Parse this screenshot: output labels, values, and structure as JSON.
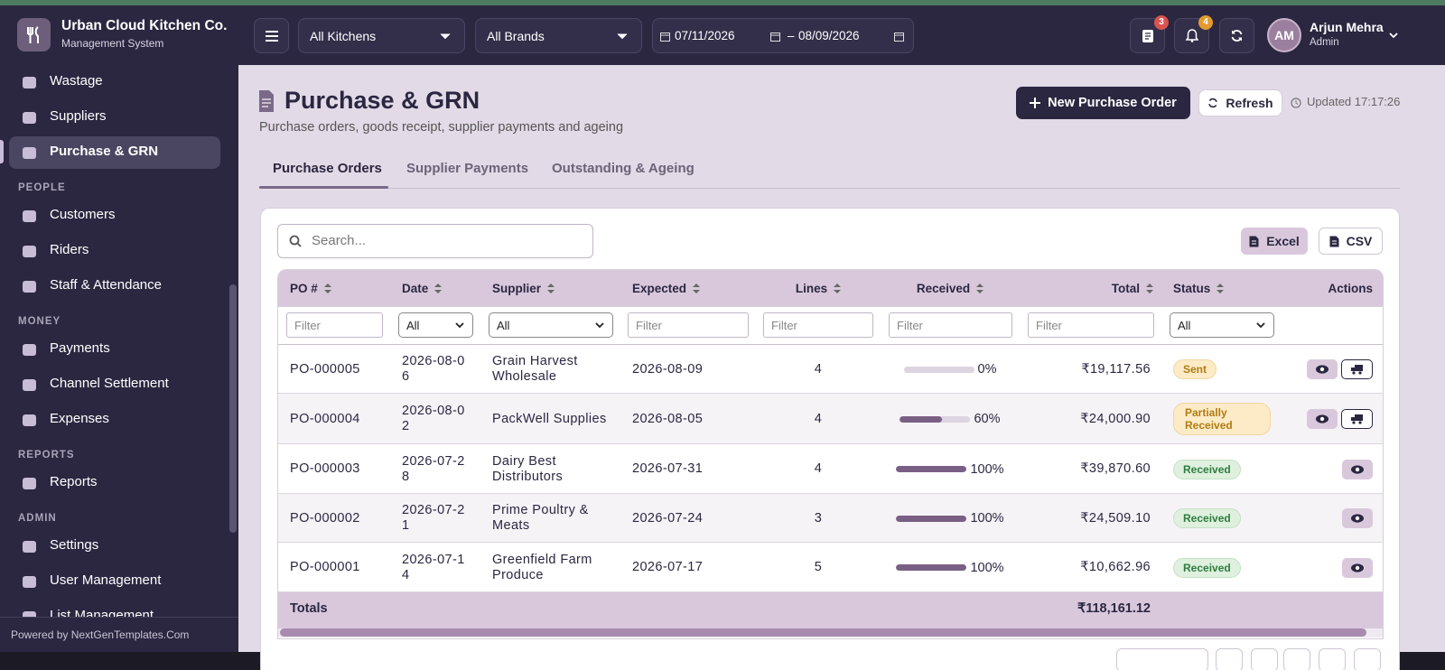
{
  "header": {
    "brand": "Urban Cloud Kitchen Co.",
    "brand_subtitle": "Management System",
    "kitchen_select": "All Kitchens",
    "brand_select": "All Brands",
    "date_from": "07/11/2026",
    "date_separator": "–",
    "date_to": "08/09/2026",
    "orders_badge": "3",
    "notifications_badge": "4",
    "user_initials": "AM",
    "user_name": "Arjun Mehra",
    "user_role": "Admin"
  },
  "sidebar": {
    "items": [
      "Wastage",
      "Suppliers",
      "Purchase & GRN"
    ],
    "active": "Purchase & GRN",
    "sections": [
      {
        "title": "PEOPLE",
        "items": [
          "Customers",
          "Riders",
          "Staff & Attendance"
        ]
      },
      {
        "title": "MONEY",
        "items": [
          "Payments",
          "Channel Settlement",
          "Expenses"
        ]
      },
      {
        "title": "REPORTS",
        "items": [
          "Reports"
        ]
      },
      {
        "title": "ADMIN",
        "items": [
          "Settings",
          "User Management",
          "List Management"
        ]
      }
    ],
    "footer": "Powered by NextGenTemplates.Com"
  },
  "page": {
    "title": "Purchase & GRN",
    "subtitle": "Purchase orders, goods receipt, supplier payments and ageing",
    "new_button": "New Purchase Order",
    "refresh_button": "Refresh",
    "updated": "Updated 17:17:26",
    "tabs": [
      "Purchase Orders",
      "Supplier Payments",
      "Outstanding & Ageing"
    ],
    "active_tab": "Purchase Orders"
  },
  "table": {
    "search_placeholder": "Search...",
    "export_buttons": [
      "Excel",
      "CSV"
    ],
    "columns": [
      "PO #",
      "Date",
      "Supplier",
      "Expected",
      "Lines",
      "Received",
      "Total",
      "Status",
      "Actions"
    ],
    "filters": [
      "Filter",
      "All",
      "All",
      "Filter",
      "Filter",
      "Filter",
      "Filter",
      "All"
    ],
    "rows": [
      {
        "po": "PO-000005",
        "date": "2026-08-06",
        "supplier": "Grain Harvest Wholesale",
        "expected": "2026-08-09",
        "lines": 4,
        "received": {
          "value": 0,
          "label": "0%"
        },
        "total": "₹19,117.56",
        "status": "Sent"
      },
      {
        "po": "PO-000004",
        "date": "2026-08-02",
        "supplier": "PackWell Supplies",
        "expected": "2026-08-05",
        "lines": 4,
        "received": {
          "value": 60,
          "label": "60%"
        },
        "total": "₹24,000.90",
        "status": "Partially Received"
      },
      {
        "po": "PO-000003",
        "date": "2026-07-28",
        "supplier": "Dairy Best Distributors",
        "expected": "2026-07-31",
        "lines": 4,
        "received": {
          "value": 100,
          "label": "100%"
        },
        "total": "₹39,870.60",
        "status": "Received"
      },
      {
        "po": "PO-000002",
        "date": "2026-07-21",
        "supplier": "Prime Poultry & Meats",
        "expected": "2026-07-24",
        "lines": 3,
        "received": {
          "value": 100,
          "label": "100%"
        },
        "total": "₹24,509.10",
        "status": "Received"
      },
      {
        "po": "PO-000001",
        "date": "2026-07-14",
        "supplier": "Greenfield Farm Produce",
        "expected": "2026-07-17",
        "lines": 5,
        "received": {
          "value": 100,
          "label": "100%"
        },
        "total": "₹10,662.96",
        "status": "Received"
      }
    ],
    "totals_label": "Totals",
    "totals_total": "₹118,161.12"
  }
}
